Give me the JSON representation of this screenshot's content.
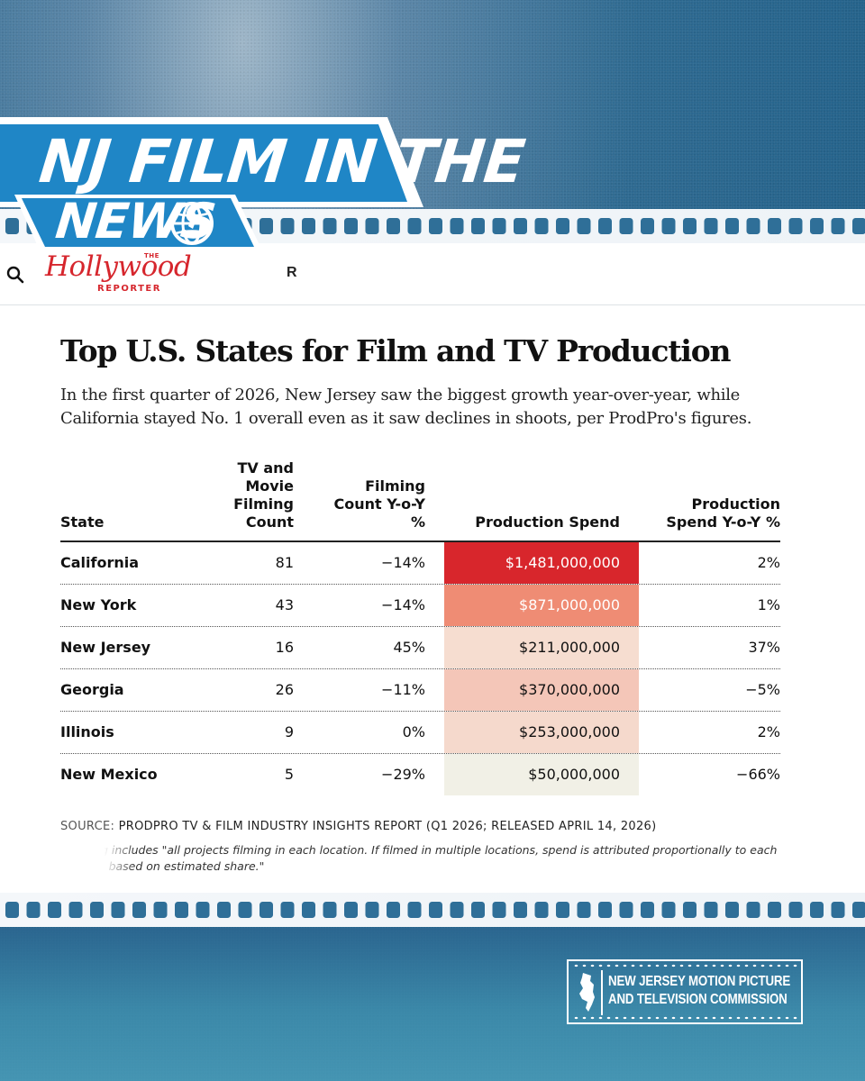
{
  "banner": {
    "line1": "NJ FILM IN THE",
    "line2": "NEWS"
  },
  "site": {
    "logo_the": "THE",
    "logo_name": "Hollywood",
    "logo_reporter": "REPORTER",
    "nav_fragment": "R"
  },
  "article": {
    "headline": "Top U.S. States for Film and TV Production",
    "dek": "In the first quarter of 2026, New Jersey saw the biggest growth year-over-year, while California stayed No. 1 overall even as it saw declines in shoots, per ProdPro's figures."
  },
  "table": {
    "headers": {
      "state": "State",
      "count": "TV and Movie Filming Count",
      "count_yoy": "Filming Count Y-o-Y %",
      "spend": "Production Spend",
      "spend_yoy": "Production Spend Y-o-Y %"
    },
    "rows": [
      {
        "state": "California",
        "count": "81",
        "count_yoy": "−14%",
        "spend": "$1,481,000,000",
        "spend_yoy": "2%",
        "spend_bg": "#d8262c",
        "spend_fg": "#ffffff"
      },
      {
        "state": "New York",
        "count": "43",
        "count_yoy": "−14%",
        "spend": "$871,000,000",
        "spend_yoy": "1%",
        "spend_bg": "#ef8c74",
        "spend_fg": "#ffffff"
      },
      {
        "state": "New Jersey",
        "count": "16",
        "count_yoy": "45%",
        "spend": "$211,000,000",
        "spend_yoy": "37%",
        "spend_bg": "#f6ddd0",
        "spend_fg": "#111111"
      },
      {
        "state": "Georgia",
        "count": "26",
        "count_yoy": "−11%",
        "spend": "$370,000,000",
        "spend_yoy": "−5%",
        "spend_bg": "#f4c6b8",
        "spend_fg": "#111111"
      },
      {
        "state": "Illinois",
        "count": "9",
        "count_yoy": "0%",
        "spend": "$253,000,000",
        "spend_yoy": "2%",
        "spend_bg": "#f5d9cc",
        "spend_fg": "#111111"
      },
      {
        "state": "New Mexico",
        "count": "5",
        "count_yoy": "−29%",
        "spend": "$50,000,000",
        "spend_yoy": "−66%",
        "spend_bg": "#f1f0e6",
        "spend_fg": "#111111"
      }
    ]
  },
  "source": {
    "label": "SOURCE:",
    "text": "PRODPRO TV & FILM INDUSTRY INSIGHTS REPORT (Q1 2026; RELEASED APRIL 14, 2026)",
    "note": "Tracking includes \"all projects filming in each location. If filmed in multiple locations, spend is attributed proportionally to each location based on estimated share.\""
  },
  "commission": {
    "line1": "NEW JERSEY MOTION PICTURE",
    "line2": "AND TELEVISION COMMISSION"
  },
  "colors": {
    "background_blue": "#2e6a91",
    "banner_blue": "#1f86c6",
    "brand_red": "#d6262d"
  }
}
